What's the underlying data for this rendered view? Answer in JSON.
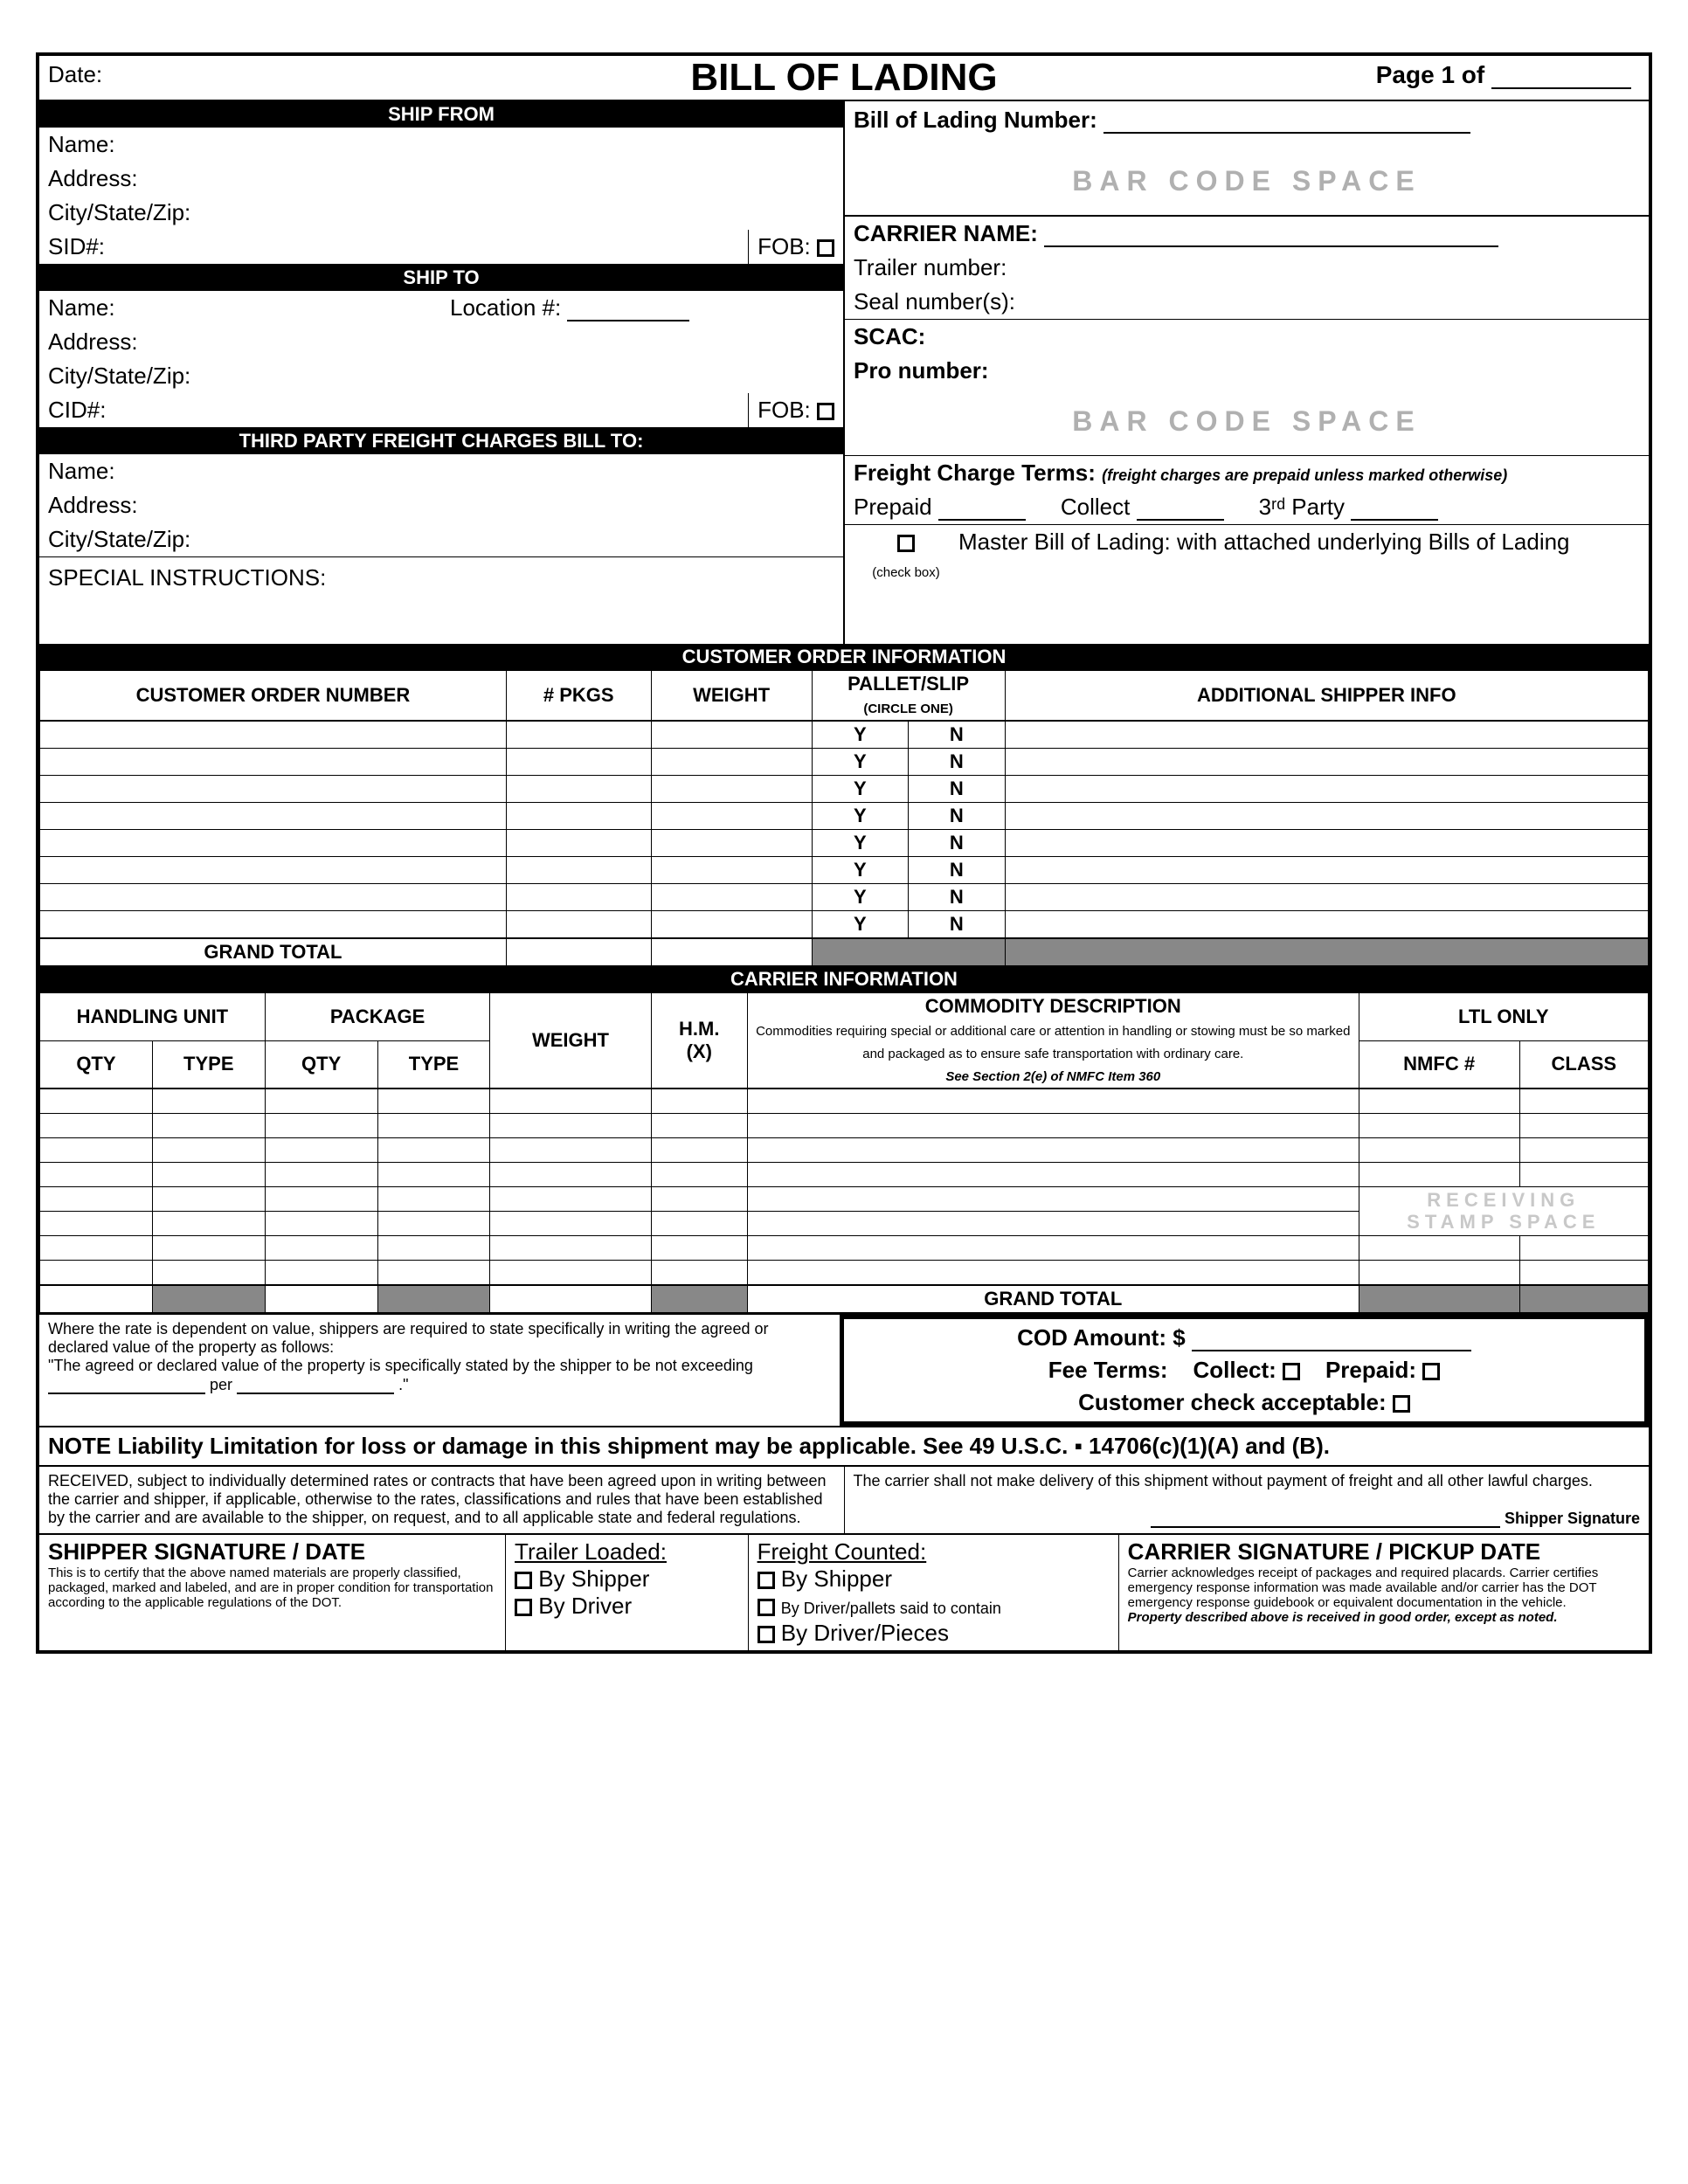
{
  "header": {
    "date_label": "Date:",
    "title": "BILL OF LADING",
    "page_label": "Page 1 of"
  },
  "ship_from": {
    "bar": "SHIP FROM",
    "name": "Name:",
    "address": "Address:",
    "csz": "City/State/Zip:",
    "sid": "SID#:",
    "fob": "FOB:"
  },
  "ship_to": {
    "bar": "SHIP TO",
    "name": "Name:",
    "loc": "Location #:",
    "address": "Address:",
    "csz": "City/State/Zip:",
    "cid": "CID#:",
    "fob": "FOB:"
  },
  "third_party": {
    "bar": "THIRD PARTY FREIGHT CHARGES BILL TO:",
    "name": "Name:",
    "address": "Address:",
    "csz": "City/State/Zip:"
  },
  "special": "SPECIAL INSTRUCTIONS:",
  "right_top": {
    "bol_num": "Bill of Lading Number:",
    "barcode": "BAR CODE SPACE",
    "carrier": "CARRIER NAME:",
    "trailer": "Trailer number:",
    "seal": "Seal number(s):",
    "scac": "SCAC:",
    "pro": "Pro number:",
    "freight_terms": "Freight Charge Terms:",
    "freight_note": "(freight charges are prepaid unless marked otherwise)",
    "prepaid": "Prepaid",
    "collect": "Collect",
    "third": "3ʳᵈ Party",
    "checkbox_label": "(check box)",
    "master": "Master Bill of Lading: with attached underlying Bills of Lading"
  },
  "cust_order": {
    "bar": "CUSTOMER ORDER INFORMATION",
    "cols": [
      "CUSTOMER ORDER NUMBER",
      "# PKGS",
      "WEIGHT",
      "PALLET/SLIP",
      "ADDITIONAL SHIPPER INFO"
    ],
    "circle": "(CIRCLE ONE)",
    "y": "Y",
    "n": "N",
    "rows": 8,
    "grand_total": "GRAND TOTAL"
  },
  "carrier_info": {
    "bar": "CARRIER INFORMATION",
    "hu": "HANDLING UNIT",
    "pkg": "PACKAGE",
    "qty": "QTY",
    "type": "TYPE",
    "weight": "WEIGHT",
    "hm": "H.M.",
    "hmx": "(X)",
    "desc": "COMMODITY DESCRIPTION",
    "desc_note": "Commodities requiring special or additional care or attention in handling or stowing must be so marked and packaged as to ensure safe transportation with ordinary care.",
    "desc_note2": "See Section 2(e) of NMFC Item 360",
    "ltl": "LTL ONLY",
    "nmfc": "NMFC #",
    "class": "CLASS",
    "rows": 8,
    "stamp1": "RECEIVING",
    "stamp2": "STAMP SPACE",
    "grand_total": "GRAND TOTAL"
  },
  "rate_note": {
    "line1": "Where the rate is dependent on value, shippers are required to state specifically in writing the agreed or declared value of the property as follows:",
    "line2": "\"The agreed or declared value of the property is specifically stated by the shipper to be not exceeding",
    "per": "per",
    "end": ".\""
  },
  "cod": {
    "amount": "COD Amount:  $",
    "fee": "Fee Terms:",
    "collect": "Collect:",
    "prepaid": "Prepaid:",
    "customer": "Customer check acceptable:"
  },
  "note": "NOTE  Liability Limitation for loss or damage in this shipment may be applicable.  See 49 U.S.C. ▪ 14706(c)(1)(A) and (B).",
  "received": "RECEIVED, subject to individually determined rates or contracts that have been agreed upon in writing between the carrier and shipper, if applicable, otherwise to the rates, classifications and rules that have been established by the carrier and are available to the shipper, on request, and to all applicable state and federal regulations.",
  "carrier_deliv": "The carrier shall not make delivery of this shipment without payment of freight and all other lawful charges.",
  "shipper_sig_label": "Shipper Signature",
  "sig": {
    "shipper_title": "SHIPPER SIGNATURE / DATE",
    "shipper_note": "This is to certify that the above named materials are properly classified, packaged, marked and labeled, and are in proper condition for transportation according to the applicable regulations of the DOT.",
    "trailer": "Trailer Loaded:",
    "freight": "Freight Counted:",
    "by_shipper": "By Shipper",
    "by_driver": "By Driver",
    "by_driver_pallets": "By Driver/pallets said to contain",
    "by_driver_pieces": "By Driver/Pieces",
    "carrier_title": "CARRIER SIGNATURE / PICKUP DATE",
    "carrier_note": "Carrier acknowledges receipt of packages and required placards.  Carrier certifies emergency response information was made available and/or carrier has the DOT emergency response guidebook or equivalent documentation in the vehicle.",
    "carrier_note2": "Property described above is received in good order, except as noted."
  }
}
